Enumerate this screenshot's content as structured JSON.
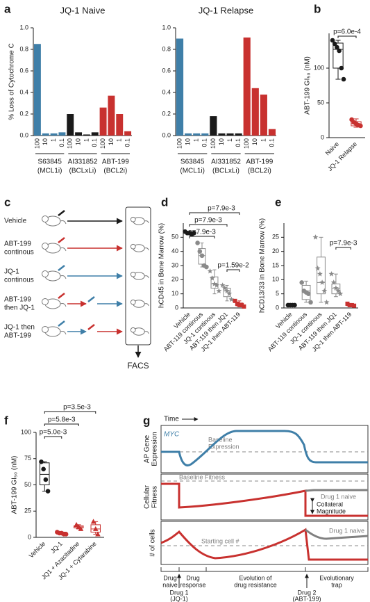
{
  "chart_data": [
    {
      "type": "bar",
      "panel": "a",
      "title": "JQ-1 Naive",
      "ylabel": "% Loss of Cytochrome C",
      "ylim": [
        0,
        1
      ],
      "yticks": [
        {
          "value": 0,
          "label": "0.0"
        },
        0.2,
        0.4,
        0.6,
        0.8,
        {
          "value": 1,
          "label": "1.0"
        }
      ],
      "groups": [
        {
          "name": "S63845",
          "note": "(MCL1i)",
          "color": "#3f7fa8",
          "categories": [
            "100",
            "10",
            "1",
            "0.1"
          ],
          "values": [
            0.85,
            0.02,
            0.02,
            0.03
          ]
        },
        {
          "name": "AI331852",
          "note": "(BCLxLi)",
          "color": "#1a1a1a",
          "categories": [
            "100",
            "10",
            "1",
            "0.1"
          ],
          "values": [
            0.2,
            0.03,
            0.01,
            0.03
          ]
        },
        {
          "name": "ABT-199",
          "note": "(BCL2i)",
          "color": "#c8312f",
          "categories": [
            "100",
            "10",
            "1",
            "0.1"
          ],
          "values": [
            0.26,
            0.37,
            0.2,
            0.04
          ]
        }
      ]
    },
    {
      "type": "bar",
      "title": "JQ-1 Relapse",
      "ylim": [
        0,
        1
      ],
      "yticks": [
        {
          "value": 0,
          "label": "0.0"
        },
        0.2,
        0.4,
        0.6,
        0.8,
        {
          "value": 1,
          "label": "1.0"
        }
      ],
      "groups": [
        {
          "name": "S63845",
          "note": "(MCL1i)",
          "color": "#3f7fa8",
          "categories": [
            "100",
            "10",
            "1",
            "0.1"
          ],
          "values": [
            0.9,
            0.02,
            0.02,
            0.02
          ]
        },
        {
          "name": "AI331852",
          "note": "(BCLxLi)",
          "color": "#1a1a1a",
          "categories": [
            "100",
            "10",
            "1",
            "0.1"
          ],
          "values": [
            0.18,
            0.02,
            0.02,
            0.02
          ]
        },
        {
          "name": "ABT-199",
          "note": "(BCL2i)",
          "color": "#c8312f",
          "categories": [
            "100",
            "10",
            "1",
            "0.1"
          ],
          "values": [
            0.91,
            0.44,
            0.38,
            0.06
          ]
        }
      ]
    },
    {
      "type": "box",
      "panel": "b",
      "ylabel": "ABT-199 GI₅₀ (nM)",
      "ylim": [
        0,
        150
      ],
      "yticks": [
        0,
        50,
        100
      ],
      "categories": [
        "Naive",
        "JQ-1 Relapse"
      ],
      "groups": [
        {
          "color": "#1a1a1a",
          "marker": "circle",
          "points": [
            140,
            135,
            130,
            125,
            100,
            84
          ],
          "box": {
            "min": 84,
            "q1": 100,
            "median": 127,
            "q3": 136,
            "max": 140
          }
        },
        {
          "color": "#c8312f",
          "marker": "circle",
          "points": [
            26,
            22,
            20,
            18,
            17
          ],
          "box": {
            "min": 15,
            "q1": 17,
            "median": 20,
            "q3": 23,
            "max": 27
          }
        }
      ],
      "annotations": [
        "p=6.0e-4"
      ]
    },
    {
      "type": "box",
      "panel": "d",
      "ylabel": "hCD45 in Bone Marrow (%)",
      "ylim": [
        0,
        60
      ],
      "yticks": [
        0,
        10,
        20,
        30,
        40,
        50
      ],
      "categories": [
        "Vehicle",
        "ABT-119 continous",
        "JQ-1 continous",
        "ABT-119 then JQ1",
        "JQ-1 then ABT-119"
      ],
      "groups": [
        {
          "color": "#1a1a1a",
          "marker": "circle",
          "points": [
            54,
            53,
            53,
            52,
            53
          ],
          "box": {
            "min": 52,
            "q1": 52.5,
            "median": 53,
            "q3": 53.5,
            "max": 54
          }
        },
        {
          "color": "#8a8a8a",
          "marker": "circle",
          "points": [
            46,
            40,
            37,
            30,
            29
          ],
          "box": {
            "min": 29,
            "q1": 31,
            "median": 37,
            "q3": 42,
            "max": 46
          }
        },
        {
          "color": "#8a8a8a",
          "marker": "star",
          "points": [
            26,
            21,
            17,
            16,
            12
          ],
          "box": {
            "min": 10,
            "q1": 14,
            "median": 17,
            "q3": 22,
            "max": 27
          }
        },
        {
          "color": "#8a8a8a",
          "marker": "star",
          "points": [
            16,
            14,
            12,
            10,
            6
          ],
          "box": {
            "min": 5,
            "q1": 8,
            "median": 12,
            "q3": 14,
            "max": 16
          }
        },
        {
          "color": "#c8312f",
          "marker": "square",
          "points": [
            5,
            3,
            2,
            2,
            1
          ],
          "box": {
            "min": 1,
            "q1": 1.5,
            "median": 2,
            "q3": 3.5,
            "max": 5
          }
        }
      ],
      "annotations": [
        "p=7.9e-3",
        "p=7.9e-3",
        "p=7.9e-3",
        "p=1.59e-2"
      ]
    },
    {
      "type": "box",
      "panel": "e",
      "ylabel": "hCD13/33 in Bone Marrow (%)",
      "ylim": [
        0,
        30
      ],
      "yticks": [
        0,
        5,
        10,
        15,
        20,
        25
      ],
      "categories": [
        "Vehicle",
        "ABT-119 continous",
        "JQ-1 continous",
        "ABT-119 then JQ1",
        "JQ-1 then ABT-119"
      ],
      "groups": [
        {
          "color": "#1a1a1a",
          "marker": "circle",
          "points": [
            1,
            1,
            1,
            1
          ],
          "box": {
            "min": 0.8,
            "q1": 0.9,
            "median": 1,
            "q3": 1.1,
            "max": 1.2
          }
        },
        {
          "color": "#8a8a8a",
          "marker": "circle",
          "points": [
            9,
            6,
            5.5,
            5,
            2
          ],
          "box": {
            "min": 2,
            "q1": 3,
            "median": 6,
            "q3": 8,
            "max": 9.5
          }
        },
        {
          "color": "#8a8a8a",
          "marker": "star",
          "points": [
            25,
            14,
            12,
            9,
            6,
            2
          ],
          "box": {
            "min": 2,
            "q1": 5,
            "median": 9,
            "q3": 18,
            "max": 25
          }
        },
        {
          "color": "#8a8a8a",
          "marker": "star",
          "points": [
            12,
            9,
            7,
            6,
            5
          ],
          "box": {
            "min": 4,
            "q1": 5,
            "median": 7,
            "q3": 8.5,
            "max": 12
          }
        },
        {
          "color": "#c8312f",
          "marker": "square",
          "points": [
            1.5,
            1,
            1,
            0.8
          ],
          "box": {
            "min": 0.7,
            "q1": 0.8,
            "median": 1,
            "q3": 1.3,
            "max": 1.6
          }
        }
      ],
      "annotations": [
        "p=7.9e-3"
      ]
    },
    {
      "type": "box",
      "panel": "f",
      "ylabel": "ABT-199 GI₅₀ (nM)",
      "ylim": [
        0,
        100
      ],
      "yticks": [
        0,
        25,
        50,
        75,
        100
      ],
      "categories": [
        "Vehicle",
        "JQ-1",
        "JQ1 + Azacitadine",
        "JQ-1 + Cytarabine"
      ],
      "groups": [
        {
          "color": "#1a1a1a",
          "marker": "circle",
          "points": [
            72,
            65,
            55,
            44
          ],
          "box": {
            "min": 44,
            "q1": 50,
            "median": 60,
            "q3": 71,
            "max": 72
          }
        },
        {
          "color": "#c8312f",
          "marker": "circle",
          "points": [
            5,
            4,
            4,
            3,
            3
          ],
          "box": {
            "min": 3,
            "q1": 3,
            "median": 4,
            "q3": 5,
            "max": 5
          }
        },
        {
          "color": "#c8312f",
          "marker": "triangle",
          "points": [
            12,
            10,
            8
          ],
          "box": {
            "min": 8,
            "q1": 9,
            "median": 10,
            "q3": 11,
            "max": 12
          }
        },
        {
          "color": "#c8312f",
          "marker": "triangle",
          "points": [
            15,
            8,
            3
          ],
          "box": {
            "min": 3,
            "q1": 5,
            "median": 8,
            "q3": 12,
            "max": 15
          }
        }
      ],
      "annotations": [
        "p=3.5e-3",
        "p=5.8e-3",
        "p=5.0e-3"
      ]
    }
  ],
  "diagrams": {
    "c": {
      "panel": "c",
      "rows": [
        {
          "label": [
            "Vehicle"
          ]
        },
        {
          "label": [
            "ABT-199",
            "continous"
          ]
        },
        {
          "label": [
            "JQ-1",
            "continous"
          ]
        },
        {
          "label": [
            "ABT-199",
            "then JQ-1"
          ]
        },
        {
          "label": [
            "JQ-1 then",
            "ABT-199"
          ]
        }
      ],
      "readout": "FACS"
    },
    "g": {
      "panel": "g",
      "time": "Time",
      "tracks": [
        {
          "label": [
            "AP Gene",
            "Expression"
          ],
          "series": "MYC",
          "baseline": [
            "Baseline",
            "Expression"
          ]
        },
        {
          "label": [
            "Cellular",
            "Fitness"
          ],
          "baseline": [
            "Baseline Fitness"
          ],
          "branch": "Drug 1 naive",
          "gap": [
            "Collateral",
            "Magnitude"
          ]
        },
        {
          "label": [
            "# of cells"
          ],
          "baseline": [
            "Starting cell #"
          ],
          "branch": "Drug 1 naive"
        }
      ],
      "phases": [
        [
          "Drug",
          "naive"
        ],
        [
          "Drug",
          "response"
        ],
        [
          "Evolution of",
          "drug resistance"
        ],
        [
          "Evolutionary",
          "trap"
        ]
      ],
      "events": [
        [
          "Drug 1",
          "(JQ-1)"
        ],
        [
          "Drug 2",
          "(ABT-199)"
        ]
      ]
    }
  }
}
